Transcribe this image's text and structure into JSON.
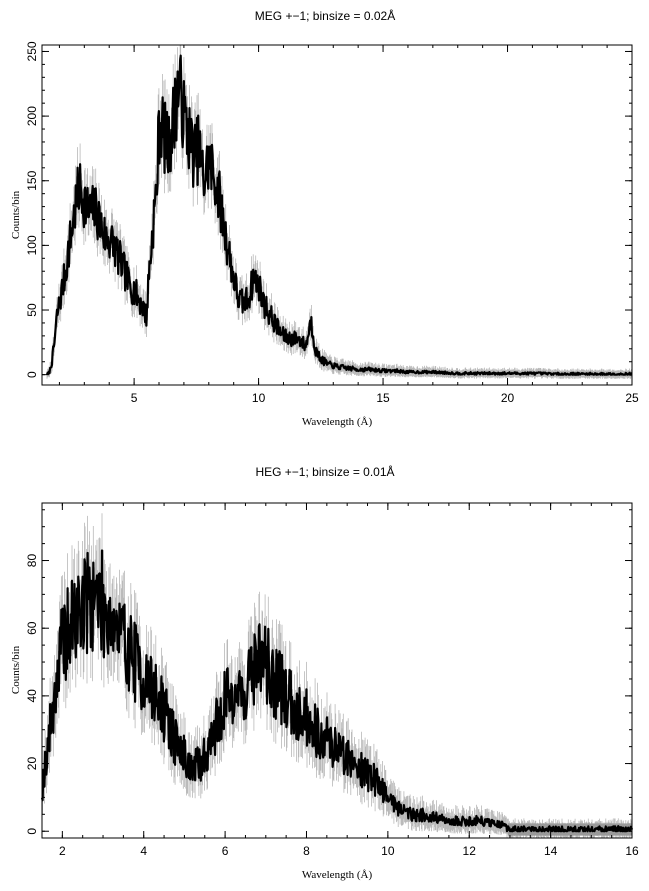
{
  "chart_data": [
    {
      "type": "line",
      "title": "MEG +−1; binsize = 0.02Å",
      "xlabel": "Wavelength (Å)",
      "ylabel": "Counts/bin",
      "xlim": [
        1.3,
        25
      ],
      "ylim": [
        -8,
        255
      ],
      "xticks": [
        5,
        10,
        15,
        20,
        25
      ],
      "yticks": [
        0,
        50,
        100,
        150,
        200,
        250
      ],
      "xtick_labels": [
        "5",
        "10",
        "15",
        "20",
        "25"
      ],
      "ytick_labels": [
        "0",
        "50",
        "100",
        "150",
        "200",
        "250"
      ],
      "grid": false,
      "series": [
        {
          "x": [
            1.5,
            1.6,
            1.7,
            1.8,
            1.9,
            2.0,
            2.2,
            2.4,
            2.6,
            2.8,
            3.0,
            3.2,
            3.4,
            3.6,
            3.8,
            4.0,
            4.2,
            4.4,
            4.6,
            4.8,
            5.0,
            5.2,
            5.4,
            5.5,
            5.6,
            5.7,
            5.8,
            5.9,
            6.0,
            6.1,
            6.2,
            6.4,
            6.6,
            6.8,
            7.0,
            7.2,
            7.4,
            7.6,
            7.8,
            8.0,
            8.2,
            8.4,
            8.6,
            8.8,
            9.0,
            9.2,
            9.4,
            9.6,
            9.8,
            10.0,
            10.2,
            10.5,
            10.8,
            11.0,
            11.3,
            11.6,
            11.9,
            12.1,
            12.3,
            12.5,
            12.8,
            13.2,
            13.6,
            14.0,
            14.5,
            15.0,
            15.5,
            16.0,
            17.0,
            18.0,
            19.0,
            20.0,
            21.0,
            22.0,
            23.0,
            24.0,
            25.0
          ],
          "y": [
            0,
            2,
            10,
            25,
            45,
            55,
            75,
            100,
            125,
            145,
            135,
            125,
            128,
            120,
            108,
            105,
            100,
            90,
            80,
            70,
            65,
            58,
            50,
            45,
            80,
            100,
            125,
            140,
            190,
            195,
            185,
            175,
            200,
            225,
            200,
            185,
            170,
            175,
            150,
            165,
            155,
            140,
            115,
            95,
            75,
            58,
            55,
            60,
            75,
            70,
            55,
            45,
            35,
            30,
            28,
            28,
            22,
            42,
            18,
            12,
            8,
            6,
            5,
            4,
            4,
            3,
            3,
            2,
            2,
            1,
            1,
            1,
            1,
            0.5,
            0.5,
            0.5,
            0.5
          ]
        }
      ]
    },
    {
      "type": "line",
      "title": "HEG +−1; binsize = 0.01Å",
      "xlabel": "Wavelength (Å)",
      "ylabel": "Counts/bin",
      "xlim": [
        1.5,
        16
      ],
      "ylim": [
        -2,
        97
      ],
      "xticks": [
        2,
        4,
        6,
        8,
        10,
        12,
        14,
        16
      ],
      "yticks": [
        0,
        20,
        40,
        60,
        80
      ],
      "xtick_labels": [
        "2",
        "4",
        "6",
        "8",
        "10",
        "12",
        "14",
        "16"
      ],
      "ytick_labels": [
        "0",
        "20",
        "40",
        "60",
        "80"
      ],
      "grid": false,
      "series": [
        {
          "x": [
            1.5,
            1.6,
            1.7,
            1.8,
            1.9,
            2.0,
            2.2,
            2.4,
            2.6,
            2.8,
            3.0,
            3.2,
            3.4,
            3.6,
            3.8,
            4.0,
            4.2,
            4.4,
            4.6,
            4.8,
            5.0,
            5.2,
            5.4,
            5.6,
            5.8,
            6.0,
            6.2,
            6.4,
            6.6,
            6.8,
            7.0,
            7.2,
            7.4,
            7.6,
            7.8,
            8.0,
            8.2,
            8.4,
            8.6,
            8.8,
            9.0,
            9.2,
            9.4,
            9.6,
            9.8,
            10.0,
            10.2,
            10.4,
            10.6,
            10.8,
            11.0,
            11.2,
            11.4,
            11.6,
            11.8,
            12.0,
            12.2,
            12.4,
            12.6,
            12.8,
            12.9,
            13.0,
            14.0,
            15.0,
            16.0
          ],
          "y": [
            12,
            22,
            30,
            40,
            48,
            55,
            60,
            65,
            68,
            70,
            67,
            63,
            58,
            55,
            50,
            45,
            42,
            38,
            32,
            26,
            22,
            18,
            20,
            25,
            32,
            38,
            42,
            40,
            45,
            52,
            50,
            44,
            42,
            38,
            36,
            34,
            30,
            28,
            26,
            24,
            22,
            20,
            18,
            16,
            14,
            10,
            8,
            6,
            5,
            5,
            4,
            4,
            3,
            3,
            3,
            3,
            3,
            3,
            2,
            2,
            1,
            0.5,
            0.5,
            0.5,
            0.5
          ]
        }
      ]
    }
  ]
}
